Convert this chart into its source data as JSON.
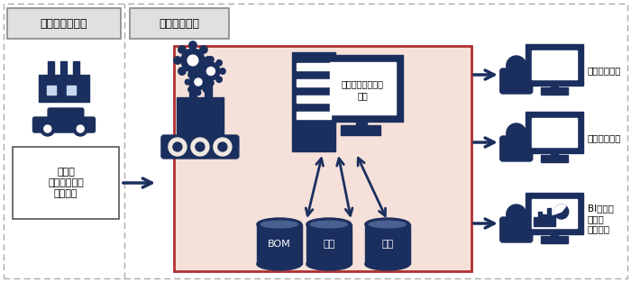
{
  "bg_color": "#ffffff",
  "left_box_label": "完成車メーカー",
  "mid_box_label": "部品メーカー",
  "center_box_color": "#f5e0da",
  "center_box_border": "#b03030",
  "simulation_label1": "シミュレーション",
  "simulation_label2": "計算",
  "db_labels": [
    "BOM",
    "計画",
    "単価"
  ],
  "output_labels": [
    "売上予算管理",
    "仕入予算計画",
    "BIツール\nによる\n予実分析"
  ],
  "text_box_label": "車種別\n生産予定台数\n（年間）",
  "dark_navy": "#1b2f5e",
  "arrow_color": "#1b2f5e",
  "box_fill": "#e0e0e0",
  "box_border": "#888888",
  "outer_border": "#aaaaaa",
  "divider_color": "#aaaaaa"
}
